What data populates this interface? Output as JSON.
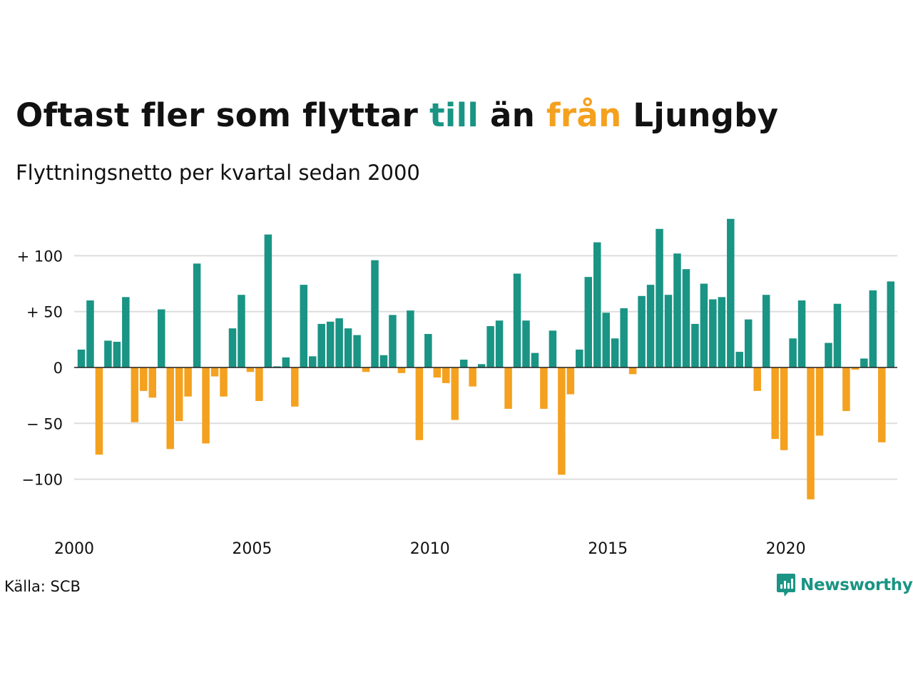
{
  "title": {
    "part1": "Oftast fler som flyttar ",
    "till": "till",
    "part2": " än ",
    "fran": "från",
    "part3": " Ljungby"
  },
  "subtitle": "Flyttningsnetto per kvartal sedan 2000",
  "source": "Källa: SCB",
  "logo": {
    "name": "Newsworthy",
    "icon": "chart-speech-bubble-icon"
  },
  "colors": {
    "positive": "#1a9484",
    "negative": "#f4a11f",
    "grid": "#dddddd",
    "text": "#111111"
  },
  "chart_data": {
    "type": "bar",
    "title": "Oftast fler som flyttar till än från Ljungby",
    "subtitle": "Flyttningsnetto per kvartal sedan 2000",
    "x_start": 2000,
    "periods_per_year": 4,
    "values": [
      16,
      60,
      -78,
      24,
      23,
      63,
      -49,
      -21,
      -27,
      52,
      -73,
      -48,
      -26,
      93,
      -68,
      -8,
      -26,
      35,
      65,
      -4,
      -30,
      119,
      1,
      9,
      -35,
      74,
      10,
      39,
      41,
      44,
      35,
      29,
      -4,
      96,
      11,
      47,
      -5,
      51,
      -65,
      30,
      -9,
      -14,
      -47,
      7,
      -17,
      3,
      37,
      42,
      -37,
      84,
      42,
      13,
      -37,
      33,
      -96,
      -24,
      16,
      81,
      112,
      49,
      26,
      53,
      -6,
      64,
      74,
      124,
      65,
      102,
      88,
      39,
      75,
      61,
      63,
      133,
      14,
      43,
      -21,
      65,
      -64,
      -74,
      26,
      60,
      -118,
      -61,
      22,
      57,
      -39,
      -2,
      8,
      69,
      -67,
      77
    ],
    "x_ticks": [
      "2000",
      "2005",
      "2010",
      "2015",
      "2020"
    ],
    "y_ticks": [
      {
        "value": 100,
        "label": "+ 100"
      },
      {
        "value": 50,
        "label": "+  50"
      },
      {
        "value": 0,
        "label": "0"
      },
      {
        "value": -50,
        "label": "− 50"
      },
      {
        "value": -100,
        "label": "−100"
      }
    ],
    "ylim": [
      -130,
      140
    ],
    "grid": true,
    "legend": "none"
  }
}
